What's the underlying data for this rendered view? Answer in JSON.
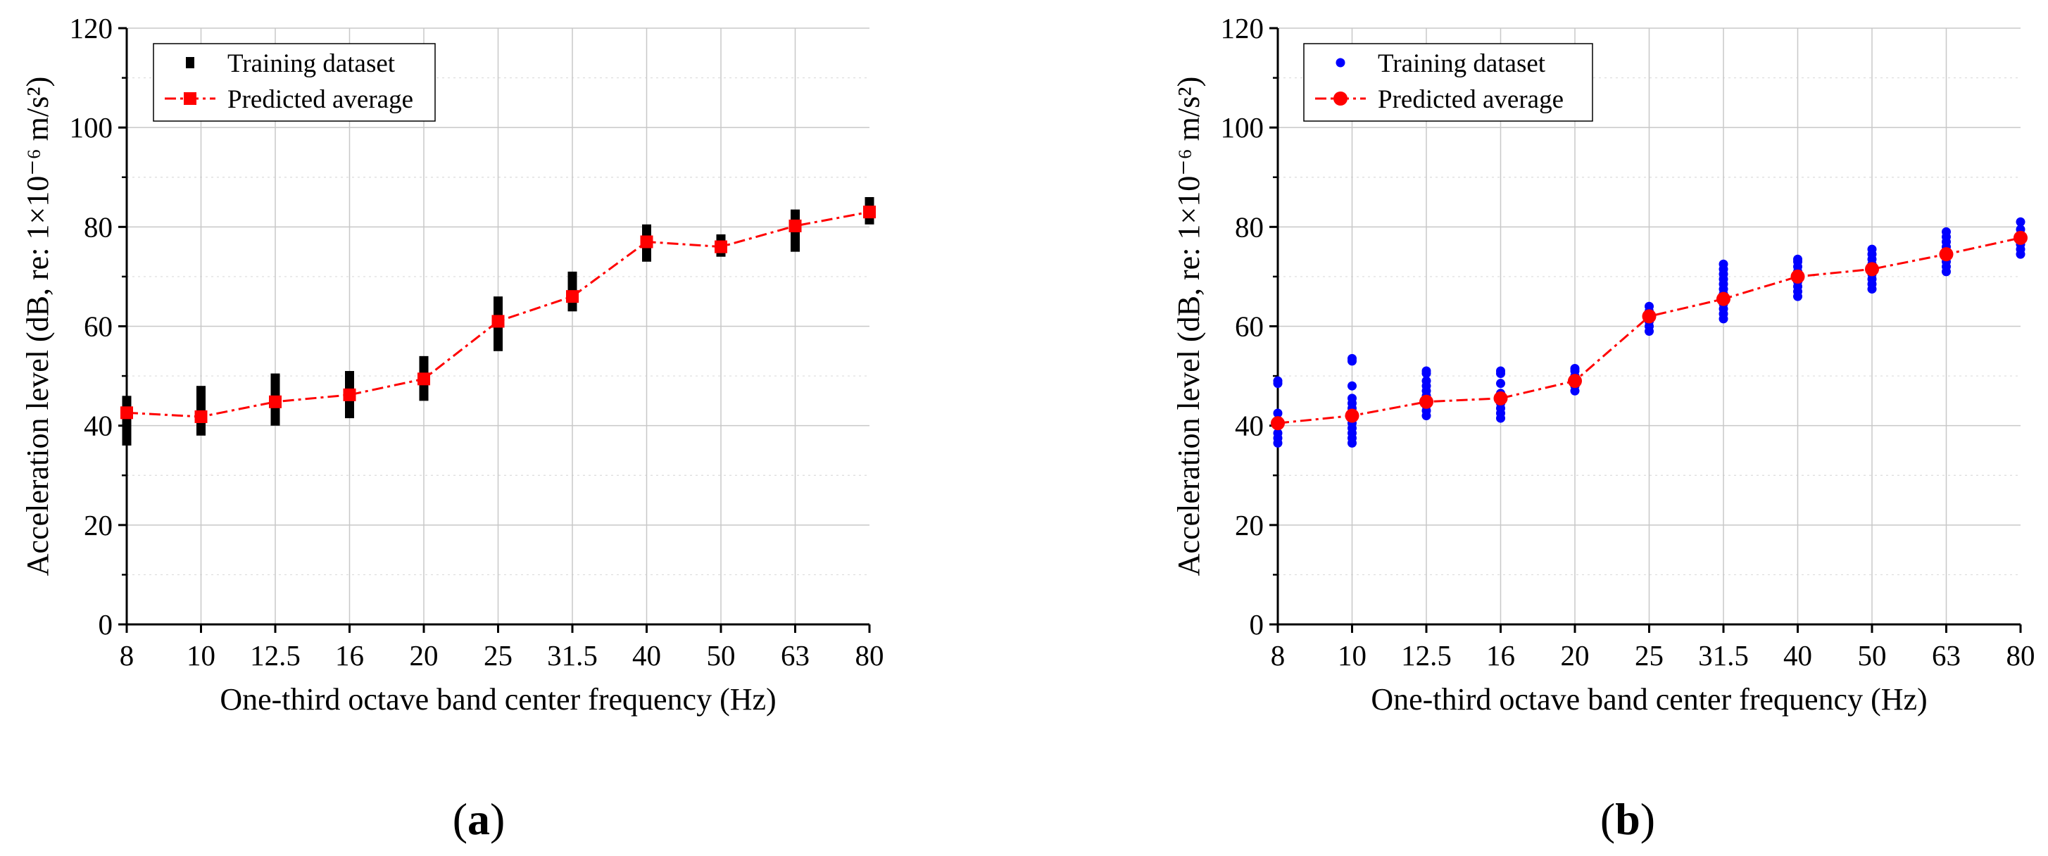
{
  "chart_data": [
    {
      "type": "scatter",
      "panel_label": {
        "open": "(",
        "letter": "a",
        "close": ")"
      },
      "xlabel": "One-third octave band center frequency (Hz)",
      "ylabel": "Acceleration level (dB, re: 1×10⁻⁶ m/s²)",
      "ylim": [
        0,
        120
      ],
      "yticks": [
        0,
        20,
        40,
        60,
        80,
        100,
        120
      ],
      "categories": [
        "8",
        "10",
        "12.5",
        "16",
        "20",
        "25",
        "31.5",
        "40",
        "50",
        "63",
        "80"
      ],
      "grid": true,
      "legend": {
        "placement": "top-left",
        "entries": [
          "Training dataset",
          "Predicted average"
        ]
      },
      "series": [
        {
          "name": "Training dataset",
          "marker": "square",
          "color": "#000000",
          "ranges": [
            [
              36,
              46
            ],
            [
              38,
              48
            ],
            [
              40,
              50.5
            ],
            [
              41.5,
              51
            ],
            [
              45,
              54
            ],
            [
              55,
              66
            ],
            [
              63,
              71
            ],
            [
              73,
              80.5
            ],
            [
              74,
              78.5
            ],
            [
              75,
              83.5
            ],
            [
              80.5,
              86
            ]
          ]
        },
        {
          "name": "Predicted average",
          "marker": "square",
          "line": "dash-dot",
          "color": "#ff0000",
          "values": [
            42.6,
            41.8,
            44.8,
            46.2,
            49.4,
            61.0,
            66.0,
            77.0,
            76.0,
            80.2,
            83.0
          ]
        }
      ]
    },
    {
      "type": "scatter",
      "panel_label": {
        "open": "(",
        "letter": "b",
        "close": ")"
      },
      "xlabel": "One-third octave band center frequency (Hz)",
      "ylabel": "Acceleration level (dB, re: 1×10⁻⁶ m/s²)",
      "ylim": [
        0,
        120
      ],
      "yticks": [
        0,
        20,
        40,
        60,
        80,
        100,
        120
      ],
      "categories": [
        "8",
        "10",
        "12.5",
        "16",
        "20",
        "25",
        "31.5",
        "40",
        "50",
        "63",
        "80"
      ],
      "grid": true,
      "legend": {
        "placement": "top-left",
        "entries": [
          "Training dataset",
          "Predicted average"
        ]
      },
      "series": [
        {
          "name": "Training dataset",
          "marker": "circle",
          "color": "#0000ff",
          "points": [
            [
              36.5,
              37.5,
              38.5,
              40,
              41,
              42.5,
              48.5,
              49
            ],
            [
              36.5,
              37.5,
              38.5,
              39.5,
              40.5,
              41.5,
              42.5,
              43.5,
              44.5,
              45.5,
              48,
              53,
              53.5
            ],
            [
              42,
              43,
              44,
              45,
              46,
              47,
              48,
              49,
              50.5,
              51
            ],
            [
              41.5,
              42.5,
              43.5,
              44.5,
              45.5,
              46.5,
              48.5,
              50.5,
              51
            ],
            [
              47,
              48,
              49,
              50,
              51,
              51.5
            ],
            [
              59,
              60,
              61,
              62,
              63,
              64
            ],
            [
              61.5,
              62.5,
              63.5,
              64.5,
              65.5,
              66.5,
              67.5,
              68.5,
              69.5,
              70.5,
              71.5,
              72.5
            ],
            [
              66,
              67,
              68,
              69,
              70,
              71,
              72,
              73,
              73.5
            ],
            [
              67.5,
              68.5,
              69.5,
              70.5,
              71.5,
              72.5,
              73.5,
              74.5,
              75.5
            ],
            [
              71,
              72,
              73,
              74,
              75,
              76,
              77,
              78,
              79
            ],
            [
              74.5,
              75.5,
              76.5,
              77.5,
              78.5,
              79.5,
              81
            ]
          ]
        },
        {
          "name": "Predicted average",
          "marker": "circle",
          "line": "dash-dot",
          "color": "#ff0000",
          "values": [
            40.5,
            42.0,
            44.8,
            45.5,
            49.0,
            62.0,
            65.5,
            70.0,
            71.5,
            74.5,
            77.8
          ]
        }
      ]
    }
  ]
}
